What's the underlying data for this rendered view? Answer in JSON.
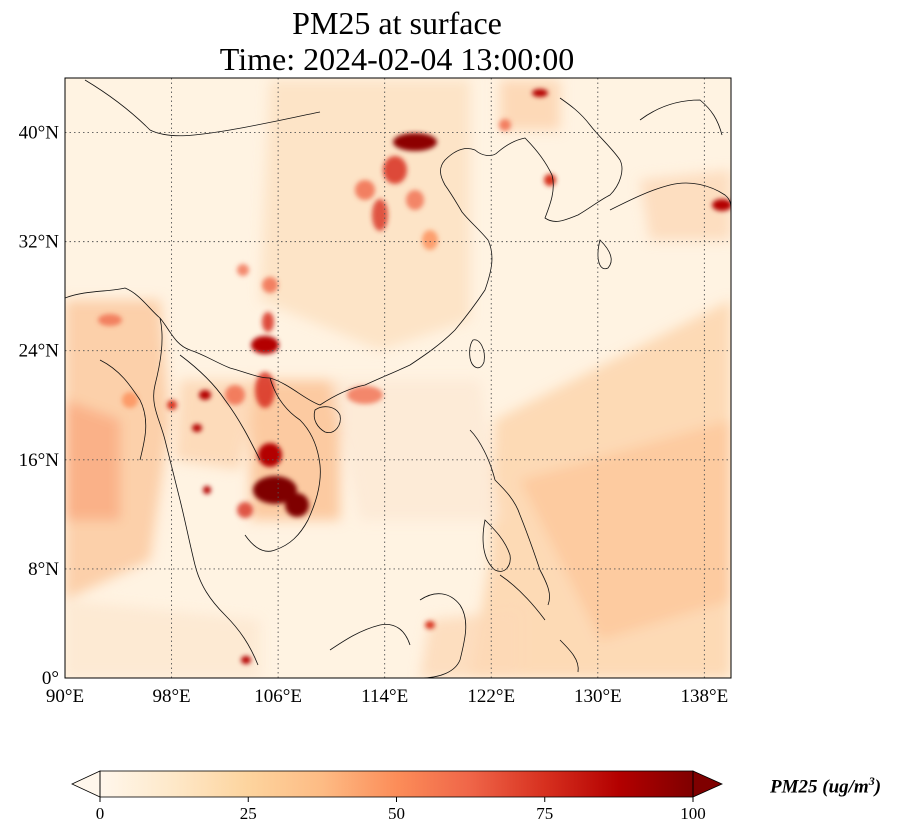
{
  "title": {
    "line1": "PM25 at surface",
    "line2": "Time: 2024-02-04 13:00:00"
  },
  "map": {
    "projection": "PlateCarree",
    "lon_range": [
      90,
      140
    ],
    "lat_range": [
      0,
      44
    ],
    "gridlines": "dotted",
    "lon_ticks": [
      "90°E",
      "98°E",
      "106°E",
      "114°E",
      "122°E",
      "130°E",
      "138°E"
    ],
    "lat_ticks": [
      "0°",
      "8°N",
      "16°N",
      "24°N",
      "32°N",
      "40°N"
    ],
    "field": "PM25 surface concentration",
    "colormap": "OrRd"
  },
  "colorbar": {
    "min": 0,
    "max": 100,
    "extend": "both",
    "ticks": [
      "0",
      "25",
      "50",
      "75",
      "100"
    ],
    "colors": [
      "#fff7ec",
      "#fee8c8",
      "#fdd49e",
      "#fdbb84",
      "#fc8d59",
      "#ef6548",
      "#d7301f",
      "#b30000",
      "#7f0000"
    ],
    "label_main": "PM25 (ug/m",
    "label_exp": "3",
    "label_close": ")"
  }
}
